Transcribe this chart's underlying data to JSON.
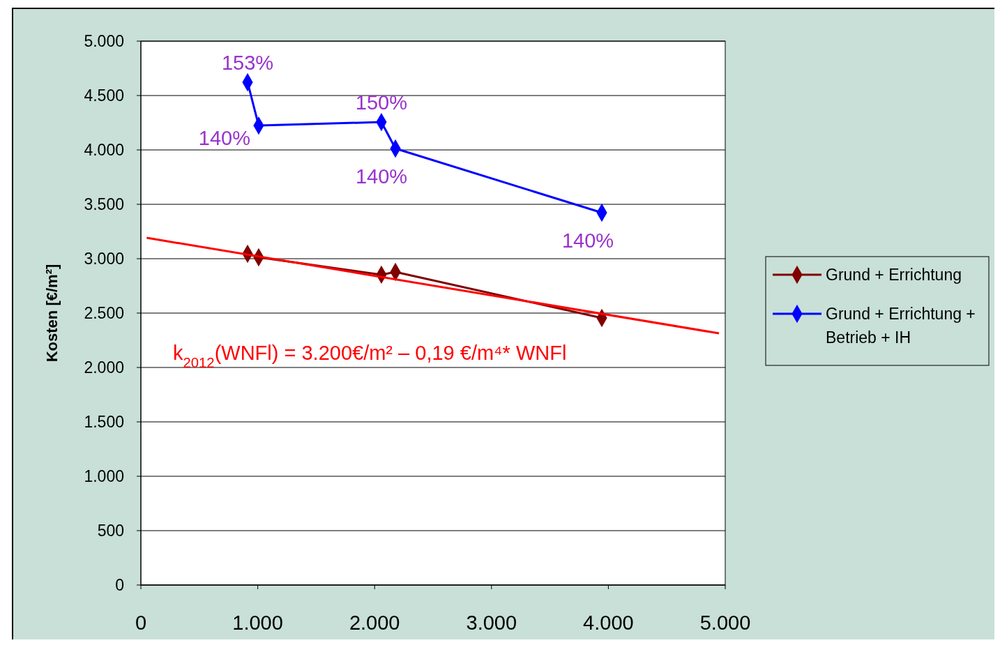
{
  "chart_data": {
    "type": "line",
    "ylabel": "Kosten [€/m²]",
    "xlim": [
      0,
      5000
    ],
    "xticks": [
      {
        "value": 0,
        "label": "0"
      },
      {
        "value": 1000,
        "label": "1.000"
      },
      {
        "value": 2000,
        "label": "2.000"
      },
      {
        "value": 3000,
        "label": "3.000"
      },
      {
        "value": 4000,
        "label": "4.000"
      },
      {
        "value": 5000,
        "label": "5.000"
      }
    ],
    "ylim": [
      0,
      5000
    ],
    "yticks": [
      {
        "value": 0,
        "label": "0"
      },
      {
        "value": 500,
        "label": "500"
      },
      {
        "value": 1000,
        "label": "1.000"
      },
      {
        "value": 1500,
        "label": "1.500"
      },
      {
        "value": 2000,
        "label": "2.000"
      },
      {
        "value": 2500,
        "label": "2.500"
      },
      {
        "value": 3000,
        "label": "3.000"
      },
      {
        "value": 3500,
        "label": "3.500"
      },
      {
        "value": 4000,
        "label": "4.000"
      },
      {
        "value": 4500,
        "label": "4.500"
      },
      {
        "value": 5000,
        "label": "5.000"
      }
    ],
    "series": [
      {
        "name": "Grund + Errichtung",
        "color": "#800000",
        "x": [
          913,
          1008,
          2058,
          2178,
          3944
        ],
        "values": [
          3045,
          3013,
          2853,
          2878,
          2455
        ]
      },
      {
        "name": "Grund + Errichtung + Betrieb + IH",
        "color": "#0000ff",
        "x": [
          913,
          1008,
          2058,
          2178,
          3944
        ],
        "values": [
          4622,
          4224,
          4256,
          4013,
          3423
        ]
      },
      {
        "type": "line",
        "marker": "none",
        "color": "#ff0000",
        "x": [
          50,
          4946
        ],
        "values": [
          3192,
          2314
        ]
      }
    ],
    "annotations": [
      "k$_{2012}$(WNFl) = 3.200€/m² – 0,19 €/m⁴* WNFl",
      {
        "text": "153%",
        "x": 913,
        "y": 4622
      },
      {
        "text": "140%",
        "x": 1008,
        "y": 4224
      },
      {
        "text": "150%",
        "x": 2058,
        "y": 4256
      },
      {
        "text": "140%",
        "x": 2178,
        "y": 4013
      },
      {
        "text": "140%",
        "x": 3944,
        "y": 3423
      }
    ],
    "marker": "diamond",
    "grid": "y",
    "legend": "right"
  }
}
